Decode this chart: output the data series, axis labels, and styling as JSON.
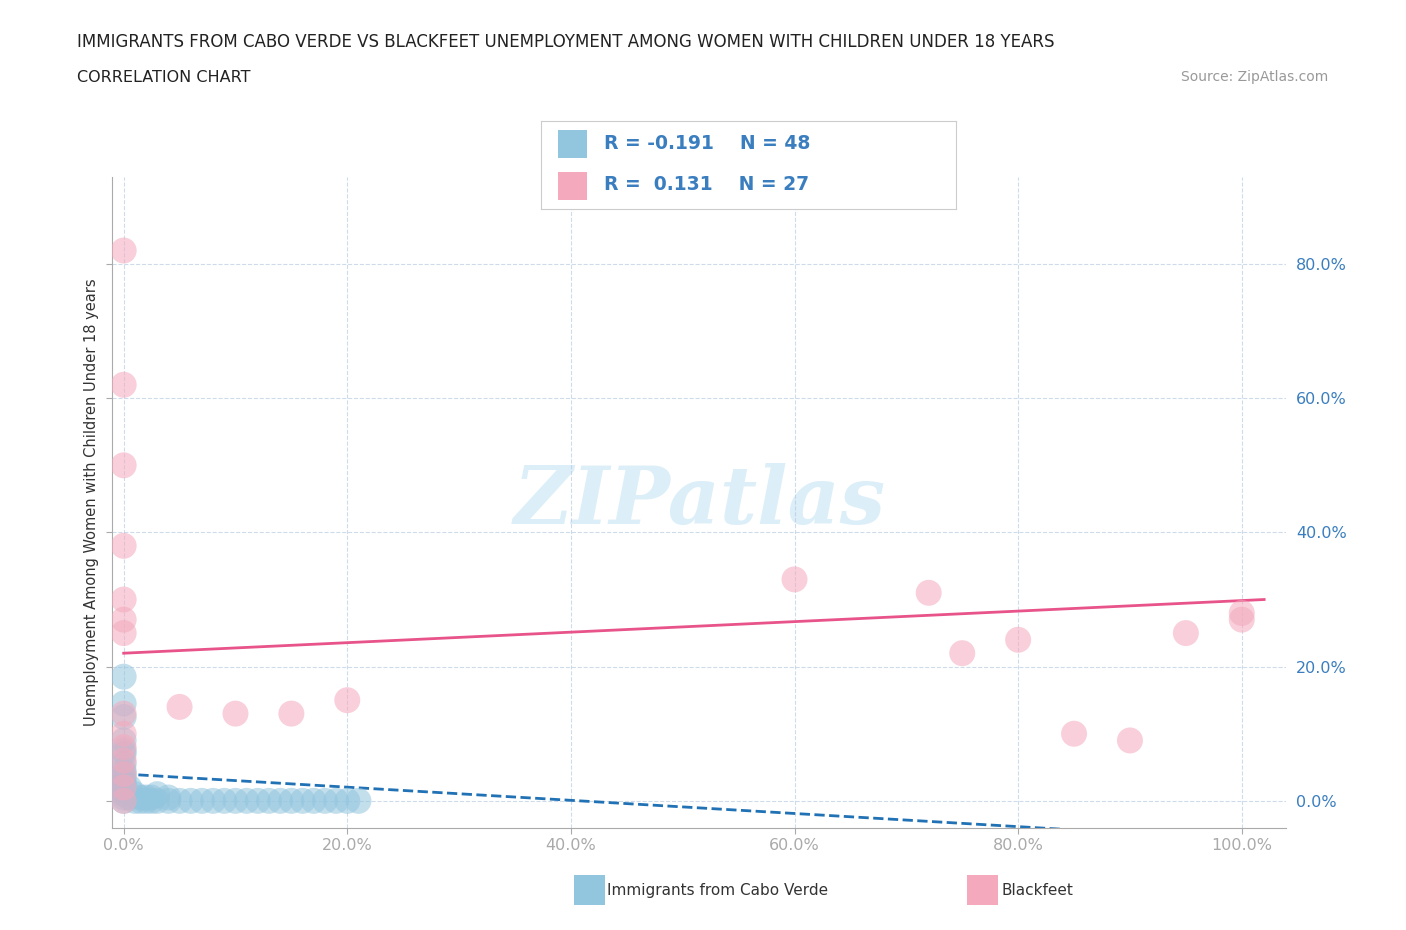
{
  "title": "IMMIGRANTS FROM CABO VERDE VS BLACKFEET UNEMPLOYMENT AMONG WOMEN WITH CHILDREN UNDER 18 YEARS",
  "subtitle": "CORRELATION CHART",
  "source": "Source: ZipAtlas.com",
  "ylabel": "Unemployment Among Women with Children Under 18 years",
  "xlim": [
    -0.01,
    1.04
  ],
  "ylim": [
    -0.04,
    0.93
  ],
  "yticks": [
    0.0,
    0.2,
    0.4,
    0.6,
    0.8
  ],
  "xticks": [
    0.0,
    0.2,
    0.4,
    0.6,
    0.8,
    1.0
  ],
  "color_blue": "#92c5de",
  "color_pink": "#f4a9bc",
  "color_blue_line": "#2171b5",
  "color_pink_line": "#e8538a",
  "watermark_color": "#d6ecf7",
  "cabo_verde_points": [
    [
      0.0,
      0.185
    ],
    [
      0.0,
      0.145
    ],
    [
      0.0,
      0.125
    ],
    [
      0.0,
      0.09
    ],
    [
      0.0,
      0.075
    ],
    [
      0.0,
      0.07
    ],
    [
      0.0,
      0.055
    ],
    [
      0.0,
      0.045
    ],
    [
      0.0,
      0.04
    ],
    [
      0.0,
      0.035
    ],
    [
      0.0,
      0.03
    ],
    [
      0.0,
      0.025
    ],
    [
      0.0,
      0.02
    ],
    [
      0.0,
      0.015
    ],
    [
      0.0,
      0.01
    ],
    [
      0.0,
      0.005
    ],
    [
      0.0,
      0.0
    ],
    [
      0.005,
      0.005
    ],
    [
      0.005,
      0.02
    ],
    [
      0.01,
      0.0
    ],
    [
      0.01,
      0.01
    ],
    [
      0.015,
      0.0
    ],
    [
      0.015,
      0.005
    ],
    [
      0.02,
      0.0
    ],
    [
      0.02,
      0.005
    ],
    [
      0.025,
      0.0
    ],
    [
      0.025,
      0.005
    ],
    [
      0.03,
      0.0
    ],
    [
      0.03,
      0.01
    ],
    [
      0.04,
      0.0
    ],
    [
      0.04,
      0.005
    ],
    [
      0.05,
      0.0
    ],
    [
      0.06,
      0.0
    ],
    [
      0.07,
      0.0
    ],
    [
      0.08,
      0.0
    ],
    [
      0.09,
      0.0
    ],
    [
      0.1,
      0.0
    ],
    [
      0.11,
      0.0
    ],
    [
      0.12,
      0.0
    ],
    [
      0.13,
      0.0
    ],
    [
      0.14,
      0.0
    ],
    [
      0.15,
      0.0
    ],
    [
      0.16,
      0.0
    ],
    [
      0.17,
      0.0
    ],
    [
      0.18,
      0.0
    ],
    [
      0.19,
      0.0
    ],
    [
      0.2,
      0.0
    ],
    [
      0.21,
      0.0
    ]
  ],
  "blackfeet_points": [
    [
      0.0,
      0.82
    ],
    [
      0.0,
      0.62
    ],
    [
      0.0,
      0.5
    ],
    [
      0.0,
      0.38
    ],
    [
      0.0,
      0.3
    ],
    [
      0.0,
      0.27
    ],
    [
      0.0,
      0.25
    ],
    [
      0.0,
      0.13
    ],
    [
      0.0,
      0.1
    ],
    [
      0.0,
      0.08
    ],
    [
      0.0,
      0.06
    ],
    [
      0.0,
      0.04
    ],
    [
      0.0,
      0.02
    ],
    [
      0.0,
      0.0
    ],
    [
      0.05,
      0.14
    ],
    [
      0.1,
      0.13
    ],
    [
      0.15,
      0.13
    ],
    [
      0.2,
      0.15
    ],
    [
      0.6,
      0.33
    ],
    [
      0.72,
      0.31
    ],
    [
      0.75,
      0.22
    ],
    [
      0.8,
      0.24
    ],
    [
      0.85,
      0.1
    ],
    [
      0.9,
      0.09
    ],
    [
      0.95,
      0.25
    ],
    [
      1.0,
      0.27
    ],
    [
      1.0,
      0.28
    ]
  ],
  "blue_line_x": [
    0.0,
    1.02
  ],
  "blue_line_y": [
    0.04,
    -0.06
  ],
  "pink_line_x": [
    0.0,
    1.02
  ],
  "pink_line_y": [
    0.22,
    0.3
  ]
}
